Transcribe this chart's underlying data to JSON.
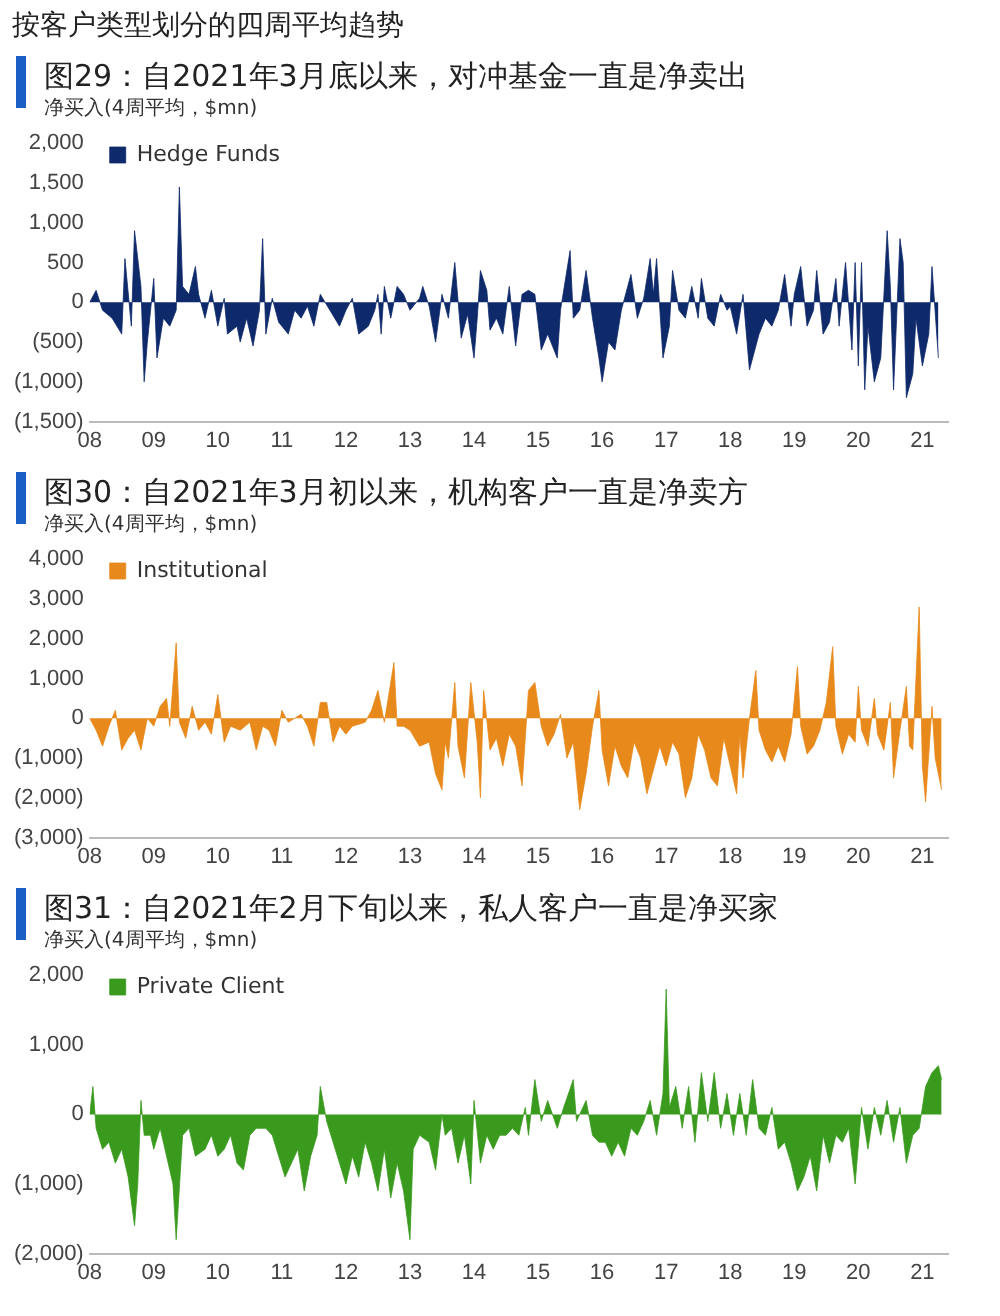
{
  "chart_data": [
    {
      "type": "area",
      "title": "按客户类型划分的四周平均趋势",
      "subtitle": "图29：自2021年3月底以来，对冲基金一直是净卖出",
      "ylabel": "净买入(4周平均，$mn)",
      "legend": "top left",
      "grid": false,
      "x": [
        2008.0,
        2008.1,
        2008.2,
        2008.35,
        2008.5,
        2008.55,
        2008.65,
        2008.7,
        2008.8,
        2008.85,
        2008.9,
        2009.0,
        2009.05,
        2009.15,
        2009.25,
        2009.35,
        2009.4,
        2009.45,
        2009.55,
        2009.65,
        2009.7,
        2009.8,
        2009.9,
        2010.0,
        2010.1,
        2010.15,
        2010.3,
        2010.35,
        2010.45,
        2010.55,
        2010.65,
        2010.7,
        2010.75,
        2010.85,
        2010.95,
        2011.1,
        2011.2,
        2011.3,
        2011.4,
        2011.5,
        2011.6,
        2011.75,
        2011.9,
        2012.0,
        2012.1,
        2012.2,
        2012.35,
        2012.45,
        2012.5,
        2012.55,
        2012.6,
        2012.7,
        2012.8,
        2012.9,
        2013.0,
        2013.15,
        2013.2,
        2013.3,
        2013.4,
        2013.5,
        2013.6,
        2013.7,
        2013.8,
        2013.9,
        2014.0,
        2014.05,
        2014.1,
        2014.2,
        2014.25,
        2014.35,
        2014.45,
        2014.55,
        2014.65,
        2014.75,
        2014.85,
        2014.95,
        2015.05,
        2015.15,
        2015.3,
        2015.35,
        2015.5,
        2015.55,
        2015.65,
        2015.75,
        2015.85,
        2015.95,
        2016.0,
        2016.1,
        2016.2,
        2016.3,
        2016.45,
        2016.55,
        2016.65,
        2016.75,
        2016.8,
        2016.85,
        2016.95,
        2017.05,
        2017.1,
        2017.2,
        2017.3,
        2017.4,
        2017.5,
        2017.55,
        2017.65,
        2017.75,
        2017.85,
        2017.95,
        2018.0,
        2018.1,
        2018.2,
        2018.3,
        2018.45,
        2018.55,
        2018.65,
        2018.75,
        2018.85,
        2018.95,
        2019.0,
        2019.1,
        2019.2,
        2019.3,
        2019.35,
        2019.45,
        2019.55,
        2019.65,
        2019.7,
        2019.8,
        2019.9,
        2019.95,
        2020.0,
        2020.05,
        2020.1,
        2020.15,
        2020.25,
        2020.35,
        2020.45,
        2020.5,
        2020.55,
        2020.65,
        2020.7,
        2020.75,
        2020.85,
        2020.9,
        2021.0,
        2021.1,
        2021.15,
        2021.25
      ],
      "series": [
        {
          "name": "Hedge Funds",
          "color": "#0f2a6b",
          "values": [
            0,
            150,
            -100,
            -200,
            -400,
            550,
            -300,
            900,
            200,
            -1000,
            -500,
            300,
            -700,
            -200,
            -300,
            -100,
            1450,
            200,
            100,
            450,
            100,
            -200,
            150,
            -300,
            50,
            -400,
            -300,
            -500,
            -200,
            -550,
            -100,
            800,
            -400,
            50,
            -250,
            -400,
            -100,
            -200,
            -50,
            -300,
            100,
            -100,
            -300,
            -100,
            50,
            -400,
            -300,
            -100,
            100,
            -400,
            200,
            -200,
            200,
            100,
            -100,
            50,
            200,
            -50,
            -500,
            100,
            -200,
            500,
            -450,
            -150,
            -700,
            -200,
            400,
            150,
            -350,
            -200,
            -400,
            200,
            -550,
            100,
            150,
            100,
            -600,
            -400,
            -700,
            -100,
            650,
            -200,
            -100,
            400,
            -200,
            -700,
            -1000,
            -500,
            -600,
            -100,
            350,
            -200,
            50,
            550,
            100,
            550,
            -700,
            -300,
            400,
            -100,
            -200,
            200,
            -200,
            300,
            -200,
            -300,
            100,
            -100,
            -50,
            -400,
            100,
            -850,
            -400,
            -200,
            -300,
            -100,
            350,
            -300,
            100,
            450,
            -300,
            -100,
            400,
            -400,
            -250,
            300,
            -300,
            500,
            -600,
            500,
            -800,
            500,
            -1100,
            -300,
            -1000,
            -700,
            900,
            200,
            -1100,
            800,
            500,
            -1200,
            -900,
            -200,
            -800,
            -400,
            450,
            -700
          ]
        }
      ],
      "xlim": [
        2008,
        2021.4
      ],
      "xticks": [
        {
          "value": 2008,
          "label": "08"
        },
        {
          "value": 2009,
          "label": "09"
        },
        {
          "value": 2010,
          "label": "10"
        },
        {
          "value": 2011,
          "label": "11"
        },
        {
          "value": 2012,
          "label": "12"
        },
        {
          "value": 2013,
          "label": "13"
        },
        {
          "value": 2014,
          "label": "14"
        },
        {
          "value": 2015,
          "label": "15"
        },
        {
          "value": 2016,
          "label": "16"
        },
        {
          "value": 2017,
          "label": "17"
        },
        {
          "value": 2018,
          "label": "18"
        },
        {
          "value": 2019,
          "label": "19"
        },
        {
          "value": 2020,
          "label": "20"
        },
        {
          "value": 2021,
          "label": "21"
        }
      ],
      "ylim": [
        -1500,
        2000
      ],
      "yticks": [
        {
          "value": -1500,
          "label": "(1,500)"
        },
        {
          "value": -1000,
          "label": "(1,000)"
        },
        {
          "value": -500,
          "label": "(500)"
        },
        {
          "value": 0,
          "label": "0"
        },
        {
          "value": 500,
          "label": "500"
        },
        {
          "value": 1000,
          "label": "1,000"
        },
        {
          "value": 1500,
          "label": "1,500"
        },
        {
          "value": 2000,
          "label": "2,000"
        }
      ]
    },
    {
      "type": "area",
      "title": "图30：自2021年3月初以来，机构客户一直是净卖方",
      "ylabel": "净买入(4周平均，$mn)",
      "legend": "top left",
      "grid": false,
      "x": [
        2008.0,
        2008.1,
        2008.2,
        2008.3,
        2008.4,
        2008.5,
        2008.6,
        2008.7,
        2008.8,
        2008.9,
        2009.0,
        2009.1,
        2009.2,
        2009.25,
        2009.35,
        2009.4,
        2009.5,
        2009.6,
        2009.7,
        2009.8,
        2009.9,
        2010.0,
        2010.1,
        2010.2,
        2010.35,
        2010.5,
        2010.6,
        2010.7,
        2010.8,
        2010.9,
        2011.0,
        2011.1,
        2011.3,
        2011.4,
        2011.5,
        2011.6,
        2011.7,
        2011.8,
        2011.9,
        2012.0,
        2012.1,
        2012.3,
        2012.4,
        2012.5,
        2012.6,
        2012.75,
        2012.8,
        2012.9,
        2013.0,
        2013.15,
        2013.3,
        2013.4,
        2013.5,
        2013.55,
        2013.6,
        2013.7,
        2013.75,
        2013.85,
        2013.95,
        2014.05,
        2014.1,
        2014.15,
        2014.25,
        2014.35,
        2014.45,
        2014.55,
        2014.65,
        2014.75,
        2014.85,
        2014.95,
        2015.05,
        2015.15,
        2015.25,
        2015.35,
        2015.45,
        2015.55,
        2015.65,
        2015.75,
        2015.85,
        2015.95,
        2016.0,
        2016.1,
        2016.2,
        2016.3,
        2016.4,
        2016.5,
        2016.6,
        2016.7,
        2016.8,
        2016.9,
        2017.0,
        2017.1,
        2017.2,
        2017.3,
        2017.4,
        2017.5,
        2017.6,
        2017.7,
        2017.8,
        2017.9,
        2018.0,
        2018.1,
        2018.15,
        2018.2,
        2018.3,
        2018.35,
        2018.4,
        2018.45,
        2018.55,
        2018.65,
        2018.75,
        2018.85,
        2018.95,
        2019.05,
        2019.1,
        2019.2,
        2019.3,
        2019.4,
        2019.5,
        2019.6,
        2019.65,
        2019.75,
        2019.85,
        2019.95,
        2020.0,
        2020.05,
        2020.15,
        2020.25,
        2020.3,
        2020.4,
        2020.5,
        2020.55,
        2020.65,
        2020.75,
        2020.8,
        2020.85,
        2020.95,
        2021.0,
        2021.05,
        2021.15,
        2021.2,
        2021.3
      ],
      "series": [
        {
          "name": "Institutional",
          "color": "#e8891c",
          "values": [
            0,
            -300,
            -700,
            -200,
            200,
            -800,
            -500,
            -300,
            -800,
            0,
            -200,
            300,
            500,
            -200,
            1900,
            -100,
            -500,
            300,
            -300,
            -100,
            -400,
            600,
            -600,
            -200,
            -300,
            -100,
            -800,
            -200,
            -300,
            -700,
            200,
            -100,
            100,
            -200,
            -700,
            400,
            400,
            -600,
            -200,
            -400,
            -200,
            -100,
            200,
            700,
            -100,
            1400,
            -200,
            -200,
            -300,
            -700,
            -600,
            -1400,
            -1800,
            -600,
            -1000,
            900,
            -700,
            -1500,
            900,
            -600,
            -2000,
            700,
            -800,
            -500,
            -1200,
            -400,
            -700,
            -1700,
            700,
            900,
            -200,
            -700,
            -400,
            100,
            -1000,
            -600,
            -2300,
            -1400,
            -200,
            700,
            -800,
            -1700,
            -700,
            -1200,
            -1500,
            -600,
            -1000,
            -1900,
            -1300,
            -700,
            -1200,
            -600,
            -900,
            -2000,
            -1500,
            -400,
            -800,
            -1500,
            -1700,
            -500,
            -1200,
            -1900,
            -400,
            -1500,
            0,
            600,
            1200,
            -300,
            -800,
            -1100,
            -700,
            -1100,
            -400,
            1300,
            -200,
            -900,
            -700,
            -300,
            400,
            1800,
            -200,
            -900,
            -400,
            -600,
            800,
            -300,
            -700,
            500,
            -400,
            -800,
            400,
            -1500,
            -300,
            800,
            -700,
            -800,
            2800,
            -1200,
            -2100,
            300,
            -1000,
            -1800
          ]
        }
      ],
      "xlim": [
        2008,
        2021.4
      ],
      "xticks": [
        {
          "value": 2008,
          "label": "08"
        },
        {
          "value": 2009,
          "label": "09"
        },
        {
          "value": 2010,
          "label": "10"
        },
        {
          "value": 2011,
          "label": "11"
        },
        {
          "value": 2012,
          "label": "12"
        },
        {
          "value": 2013,
          "label": "13"
        },
        {
          "value": 2014,
          "label": "14"
        },
        {
          "value": 2015,
          "label": "15"
        },
        {
          "value": 2016,
          "label": "16"
        },
        {
          "value": 2017,
          "label": "17"
        },
        {
          "value": 2018,
          "label": "18"
        },
        {
          "value": 2019,
          "label": "19"
        },
        {
          "value": 2020,
          "label": "20"
        },
        {
          "value": 2021,
          "label": "21"
        }
      ],
      "ylim": [
        -3000,
        4000
      ],
      "yticks": [
        {
          "value": -3000,
          "label": "(3,000)"
        },
        {
          "value": -2000,
          "label": "(2,000)"
        },
        {
          "value": -1000,
          "label": "(1,000)"
        },
        {
          "value": 0,
          "label": "0"
        },
        {
          "value": 1000,
          "label": "1,000"
        },
        {
          "value": 2000,
          "label": "2,000"
        },
        {
          "value": 3000,
          "label": "3,000"
        },
        {
          "value": 4000,
          "label": "4,000"
        }
      ]
    },
    {
      "type": "area",
      "title": "图31：自2021年2月下旬以来，私人客户一直是净买家",
      "ylabel": "净买入(4周平均，$mn)",
      "legend": "top left",
      "grid": false,
      "x": [
        2008.0,
        2008.05,
        2008.1,
        2008.2,
        2008.3,
        2008.4,
        2008.5,
        2008.6,
        2008.7,
        2008.75,
        2008.8,
        2008.85,
        2008.95,
        2009.0,
        2009.1,
        2009.2,
        2009.3,
        2009.35,
        2009.45,
        2009.55,
        2009.65,
        2009.8,
        2009.9,
        2010.0,
        2010.1,
        2010.2,
        2010.3,
        2010.4,
        2010.5,
        2010.6,
        2010.75,
        2010.85,
        2010.95,
        2011.05,
        2011.15,
        2011.25,
        2011.35,
        2011.45,
        2011.55,
        2011.6,
        2011.7,
        2011.8,
        2011.9,
        2012.0,
        2012.1,
        2012.2,
        2012.3,
        2012.4,
        2012.5,
        2012.6,
        2012.7,
        2012.8,
        2012.9,
        2013.0,
        2013.05,
        2013.15,
        2013.3,
        2013.4,
        2013.5,
        2013.55,
        2013.65,
        2013.75,
        2013.85,
        2013.95,
        2014.0,
        2014.1,
        2014.2,
        2014.3,
        2014.4,
        2014.5,
        2014.6,
        2014.7,
        2014.8,
        2014.85,
        2014.95,
        2015.05,
        2015.15,
        2015.3,
        2015.4,
        2015.55,
        2015.6,
        2015.75,
        2015.85,
        2015.95,
        2016.05,
        2016.15,
        2016.25,
        2016.35,
        2016.45,
        2016.55,
        2016.65,
        2016.75,
        2016.85,
        2016.95,
        2017.0,
        2017.05,
        2017.15,
        2017.25,
        2017.35,
        2017.45,
        2017.55,
        2017.65,
        2017.75,
        2017.85,
        2017.95,
        2018.05,
        2018.15,
        2018.25,
        2018.35,
        2018.45,
        2018.55,
        2018.65,
        2018.75,
        2018.85,
        2018.95,
        2019.05,
        2019.15,
        2019.25,
        2019.35,
        2019.45,
        2019.55,
        2019.65,
        2019.75,
        2019.85,
        2019.95,
        2020.05,
        2020.15,
        2020.25,
        2020.35,
        2020.45,
        2020.55,
        2020.65,
        2020.75,
        2020.85,
        2020.95,
        2021.05,
        2021.15,
        2021.25,
        2021.3
      ],
      "series": [
        {
          "name": "Private Client",
          "color": "#3a9a1e",
          "values": [
            0,
            400,
            -200,
            -500,
            -400,
            -700,
            -500,
            -900,
            -1600,
            -1000,
            200,
            -300,
            -300,
            -500,
            -200,
            -600,
            -1000,
            -1800,
            -300,
            -200,
            -600,
            -500,
            -300,
            -600,
            -500,
            -300,
            -700,
            -800,
            -300,
            -200,
            -200,
            -300,
            -600,
            -900,
            -700,
            -500,
            -1100,
            -600,
            -300,
            400,
            -100,
            -400,
            -700,
            -1000,
            -600,
            -900,
            -400,
            -700,
            -1100,
            -500,
            -1200,
            -700,
            -1100,
            -1800,
            -500,
            -300,
            -400,
            -800,
            0,
            -300,
            -200,
            -700,
            -300,
            -1000,
            200,
            -700,
            -300,
            -500,
            -300,
            -300,
            -200,
            -300,
            100,
            -300,
            500,
            -100,
            200,
            -200,
            100,
            500,
            -100,
            200,
            -300,
            -400,
            -400,
            -600,
            -400,
            -600,
            -200,
            -300,
            -100,
            200,
            -300,
            300,
            1800,
            100,
            400,
            -200,
            400,
            -400,
            600,
            -100,
            600,
            -200,
            300,
            -300,
            300,
            -300,
            500,
            -200,
            -300,
            100,
            -500,
            -400,
            -700,
            -1100,
            -900,
            -600,
            -1100,
            -300,
            -700,
            -300,
            -400,
            -200,
            -1000,
            100,
            -500,
            100,
            -300,
            200,
            -400,
            100,
            -700,
            -300,
            -200,
            400,
            600,
            700,
            500
          ]
        }
      ],
      "xlim": [
        2008,
        2021.4
      ],
      "xticks": [
        {
          "value": 2008,
          "label": "08"
        },
        {
          "value": 2009,
          "label": "09"
        },
        {
          "value": 2010,
          "label": "10"
        },
        {
          "value": 2011,
          "label": "11"
        },
        {
          "value": 2012,
          "label": "12"
        },
        {
          "value": 2013,
          "label": "13"
        },
        {
          "value": 2014,
          "label": "14"
        },
        {
          "value": 2015,
          "label": "15"
        },
        {
          "value": 2016,
          "label": "16"
        },
        {
          "value": 2017,
          "label": "17"
        },
        {
          "value": 2018,
          "label": "18"
        },
        {
          "value": 2019,
          "label": "19"
        },
        {
          "value": 2020,
          "label": "20"
        },
        {
          "value": 2021,
          "label": "21"
        }
      ],
      "ylim": [
        -2000,
        2000
      ],
      "yticks": [
        {
          "value": -2000,
          "label": "(2,000)"
        },
        {
          "value": -1000,
          "label": "(1,000)"
        },
        {
          "value": 0,
          "label": "0"
        },
        {
          "value": 1000,
          "label": "1,000"
        },
        {
          "value": 2000,
          "label": "2,000"
        }
      ]
    }
  ]
}
